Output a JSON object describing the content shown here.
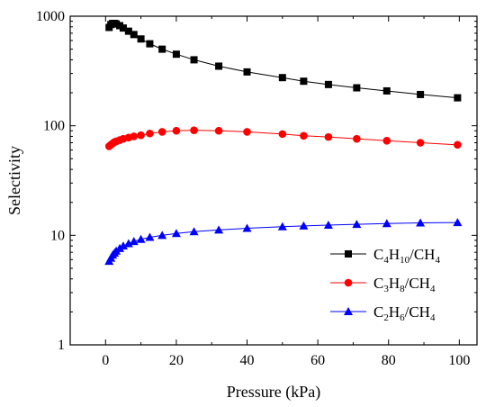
{
  "chart_data": {
    "type": "line",
    "xlabel": "Pressure (kPa)",
    "ylabel": "Selectivity",
    "xlim": [
      -10,
      105
    ],
    "ylim": [
      1,
      1000
    ],
    "yscale": "log",
    "xticks": [
      0,
      20,
      40,
      60,
      80,
      100
    ],
    "xtick_labels": [
      "0",
      "20",
      "40",
      "60",
      "80",
      "100"
    ],
    "yticks": [
      1,
      10,
      100,
      1000
    ],
    "ytick_labels": [
      "1",
      "10",
      "100",
      "1000"
    ],
    "grid": false,
    "legend_position": "lower-right",
    "series": [
      {
        "name": "C4H10/CH4",
        "name_parts": [
          [
            "C",
            ""
          ],
          [
            "4",
            "sub"
          ],
          [
            "H",
            ""
          ],
          [
            "10",
            "sub"
          ],
          [
            "/CH",
            ""
          ],
          [
            "4",
            "sub"
          ]
        ],
        "color": "#000000",
        "marker": "square",
        "x": [
          1,
          1.5,
          2,
          2.5,
          3,
          4,
          5,
          6.5,
          8,
          10,
          12.5,
          16,
          20,
          25,
          32,
          40,
          50,
          56,
          63,
          71,
          79.5,
          89,
          99.5
        ],
        "y": [
          790,
          840,
          860,
          860,
          850,
          820,
          780,
          730,
          680,
          620,
          560,
          500,
          450,
          400,
          350,
          310,
          275,
          255,
          238,
          222,
          208,
          193,
          180
        ]
      },
      {
        "name": "C3H8/CH4",
        "name_parts": [
          [
            "C",
            ""
          ],
          [
            "3",
            "sub"
          ],
          [
            "H",
            ""
          ],
          [
            "8",
            "sub"
          ],
          [
            "/CH",
            ""
          ],
          [
            "4",
            "sub"
          ]
        ],
        "color": "#ff0000",
        "marker": "circle",
        "x": [
          1,
          1.5,
          2,
          2.5,
          3,
          4,
          5,
          6.5,
          8,
          10,
          12.5,
          16,
          20,
          25,
          32,
          40,
          50,
          56,
          63,
          71,
          79.5,
          89,
          99.5
        ],
        "y": [
          65,
          67,
          69,
          71,
          72,
          74,
          76,
          78,
          80,
          82,
          85,
          88,
          90,
          91,
          90,
          88,
          84,
          81,
          79,
          76,
          73,
          70,
          67
        ]
      },
      {
        "name": "C2H6/CH4",
        "name_parts": [
          [
            "C",
            ""
          ],
          [
            "2",
            "sub"
          ],
          [
            "H",
            ""
          ],
          [
            "6",
            "sub"
          ],
          [
            "/CH",
            ""
          ],
          [
            "4",
            "sub"
          ]
        ],
        "color": "#0000ff",
        "marker": "triangle",
        "x": [
          1,
          1.5,
          2,
          2.5,
          3,
          4,
          5,
          6.5,
          8,
          10,
          12.5,
          16,
          20,
          25,
          32,
          40,
          50,
          56,
          63,
          71,
          79.5,
          89,
          99.5
        ],
        "y": [
          5.8,
          6.2,
          6.6,
          6.9,
          7.2,
          7.6,
          8.0,
          8.4,
          8.8,
          9.2,
          9.6,
          10.0,
          10.4,
          10.8,
          11.2,
          11.6,
          12.0,
          12.2,
          12.4,
          12.6,
          12.8,
          13.0,
          13.1
        ]
      }
    ]
  }
}
